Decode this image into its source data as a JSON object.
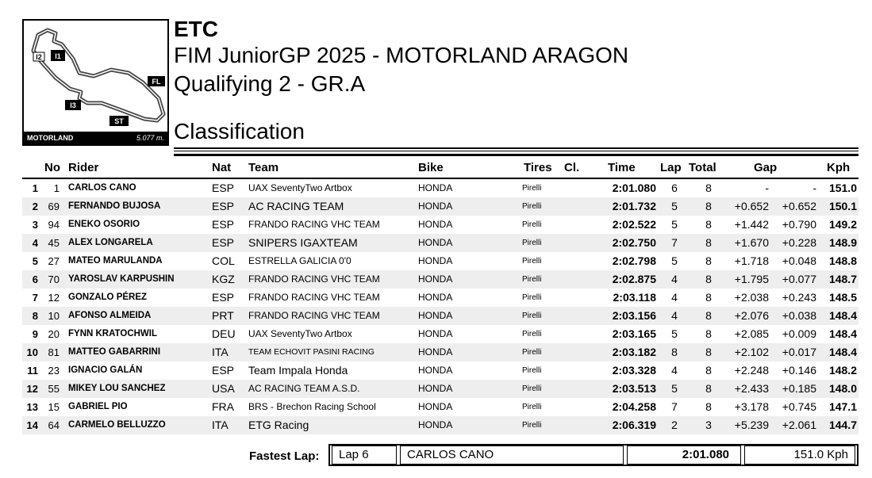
{
  "track": {
    "name": "MOTORLAND",
    "length": "5.077 m.",
    "labels": [
      "I2",
      "I1",
      "FL",
      "I3",
      "ST"
    ]
  },
  "header": {
    "line1": "ETC",
    "line2": "FIM JuniorGP 2025 - MOTORLAND ARAGON",
    "line3": "Qualifying 2 - GR.A",
    "line4": "Classification"
  },
  "columns": {
    "no": "No",
    "rider": "Rider",
    "nat": "Nat",
    "team": "Team",
    "bike": "Bike",
    "tires": "Tires",
    "cl": "Cl.",
    "time": "Time",
    "lap": "Lap",
    "total": "Total",
    "gap": "Gap",
    "kph": "Kph"
  },
  "rows": [
    {
      "pos": "1",
      "no": "1",
      "rider": "CARLOS CANO",
      "nat": "ESP",
      "team": "UAX SeventyTwo Artbox",
      "bike": "HONDA",
      "tires": "Pirelli",
      "time": "2:01.080",
      "lap": "6",
      "total": "8",
      "gap_first": "-",
      "gap_prev": "-",
      "kph": "151.0"
    },
    {
      "pos": "2",
      "no": "69",
      "rider": "FERNANDO BUJOSA",
      "nat": "ESP",
      "team": "AC RACING TEAM",
      "bike": "HONDA",
      "tires": "Pirelli",
      "time": "2:01.732",
      "lap": "5",
      "total": "8",
      "gap_first": "+0.652",
      "gap_prev": "+0.652",
      "kph": "150.1"
    },
    {
      "pos": "3",
      "no": "94",
      "rider": "ENEKO OSORIO",
      "nat": "ESP",
      "team": "FRANDO RACING VHC TEAM",
      "bike": "HONDA",
      "tires": "Pirelli",
      "time": "2:02.522",
      "lap": "5",
      "total": "8",
      "gap_first": "+1.442",
      "gap_prev": "+0.790",
      "kph": "149.2"
    },
    {
      "pos": "4",
      "no": "45",
      "rider": "ALEX LONGARELA",
      "nat": "ESP",
      "team": "SNIPERS IGAXTEAM",
      "bike": "HONDA",
      "tires": "Pirelli",
      "time": "2:02.750",
      "lap": "7",
      "total": "8",
      "gap_first": "+1.670",
      "gap_prev": "+0.228",
      "kph": "148.9"
    },
    {
      "pos": "5",
      "no": "27",
      "rider": "MATEO MARULANDA",
      "nat": "COL",
      "team": "ESTRELLA GALICIA 0'0",
      "bike": "HONDA",
      "tires": "Pirelli",
      "time": "2:02.798",
      "lap": "5",
      "total": "8",
      "gap_first": "+1.718",
      "gap_prev": "+0.048",
      "kph": "148.8"
    },
    {
      "pos": "6",
      "no": "70",
      "rider": "YAROSLAV KARPUSHIN",
      "nat": "KGZ",
      "team": "FRANDO RACING VHC TEAM",
      "bike": "HONDA",
      "tires": "Pirelli",
      "time": "2:02.875",
      "lap": "4",
      "total": "8",
      "gap_first": "+1.795",
      "gap_prev": "+0.077",
      "kph": "148.7"
    },
    {
      "pos": "7",
      "no": "12",
      "rider": "GONZALO PÉREZ",
      "nat": "ESP",
      "team": "FRANDO RACING VHC TEAM",
      "bike": "HONDA",
      "tires": "Pirelli",
      "time": "2:03.118",
      "lap": "4",
      "total": "8",
      "gap_first": "+2.038",
      "gap_prev": "+0.243",
      "kph": "148.5"
    },
    {
      "pos": "8",
      "no": "10",
      "rider": "AFONSO ALMEIDA",
      "nat": "PRT",
      "team": "FRANDO RACING VHC TEAM",
      "bike": "HONDA",
      "tires": "Pirelli",
      "time": "2:03.156",
      "lap": "4",
      "total": "8",
      "gap_first": "+2.076",
      "gap_prev": "+0.038",
      "kph": "148.4"
    },
    {
      "pos": "9",
      "no": "20",
      "rider": "FYNN KRATOCHWIL",
      "nat": "DEU",
      "team": "UAX SeventyTwo Artbox",
      "bike": "HONDA",
      "tires": "Pirelli",
      "time": "2:03.165",
      "lap": "5",
      "total": "8",
      "gap_first": "+2.085",
      "gap_prev": "+0.009",
      "kph": "148.4"
    },
    {
      "pos": "10",
      "no": "81",
      "rider": "MATTEO GABARRINI",
      "nat": "ITA",
      "team": "TEAM ECHOVIT PASINI RACING",
      "bike": "HONDA",
      "tires": "Pirelli",
      "time": "2:03.182",
      "lap": "8",
      "total": "8",
      "gap_first": "+2.102",
      "gap_prev": "+0.017",
      "kph": "148.4"
    },
    {
      "pos": "11",
      "no": "23",
      "rider": "IGNACIO GALÁN",
      "nat": "ESP",
      "team": "Team Impala Honda",
      "bike": "HONDA",
      "tires": "Pirelli",
      "time": "2:03.328",
      "lap": "4",
      "total": "8",
      "gap_first": "+2.248",
      "gap_prev": "+0.146",
      "kph": "148.2"
    },
    {
      "pos": "12",
      "no": "55",
      "rider": "MIKEY LOU SANCHEZ",
      "nat": "USA",
      "team": "AC RACING TEAM A.S.D.",
      "bike": "HONDA",
      "tires": "Pirelli",
      "time": "2:03.513",
      "lap": "5",
      "total": "8",
      "gap_first": "+2.433",
      "gap_prev": "+0.185",
      "kph": "148.0"
    },
    {
      "pos": "13",
      "no": "15",
      "rider": "GABRIEL PIO",
      "nat": "FRA",
      "team": "BRS - Brechon Racing School",
      "bike": "HONDA",
      "tires": "Pirelli",
      "time": "2:04.258",
      "lap": "7",
      "total": "8",
      "gap_first": "+3.178",
      "gap_prev": "+0.745",
      "kph": "147.1"
    },
    {
      "pos": "14",
      "no": "64",
      "rider": "CARMELO BELLUZZO",
      "nat": "ITA",
      "team": "ETG Racing",
      "bike": "HONDA",
      "tires": "Pirelli",
      "time": "2:06.319",
      "lap": "2",
      "total": "3",
      "gap_first": "+5.239",
      "gap_prev": "+2.061",
      "kph": "144.7"
    }
  ],
  "fastest_lap": {
    "label": "Fastest Lap:",
    "lap": "Lap 6",
    "rider": "CARLOS CANO",
    "time": "2:01.080",
    "speed": "151.0 Kph"
  }
}
